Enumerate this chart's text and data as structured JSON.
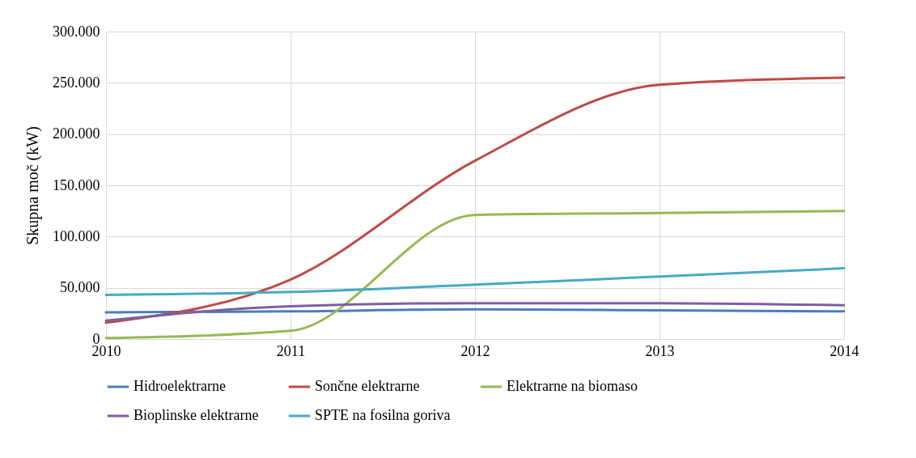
{
  "chart_data": {
    "type": "line",
    "ylabel": "Skupna moč (kW)",
    "x": [
      2010,
      2011,
      2012,
      2013,
      2014
    ],
    "xlim": [
      2010,
      2014
    ],
    "xticks": [
      2010,
      2011,
      2012,
      2013,
      2014
    ],
    "ylim": [
      0,
      300000
    ],
    "yticks": [
      0,
      {
        "value": 50000,
        "label": "50.000"
      },
      {
        "value": 100000,
        "label": "100.000"
      },
      {
        "value": 150000,
        "label": "150.000"
      },
      {
        "value": 200000,
        "label": "200.000"
      },
      {
        "value": 250000,
        "label": "250.000"
      },
      {
        "value": 300000,
        "label": "300.000"
      }
    ],
    "grid": true,
    "legend": "bottom",
    "marker": "none",
    "line_style": "solid",
    "series": [
      {
        "name": "Hidroelektrarne",
        "color": "#4a7ebb",
        "values": [
          26000,
          27000,
          29000,
          28000,
          27000
        ]
      },
      {
        "name": "Sončne elektrarne",
        "color": "#be4b48",
        "values": [
          16000,
          58000,
          174000,
          248000,
          255000
        ]
      },
      {
        "name": "Elektrarne na biomaso",
        "color": "#98b954",
        "values": [
          1000,
          8000,
          121000,
          123000,
          125000
        ]
      },
      {
        "name": "Bioplinske elektrarne",
        "color": "#7d60a0",
        "values": [
          18000,
          32000,
          35000,
          35000,
          33000
        ]
      },
      {
        "name": "SPTE na fosilna goriva",
        "color": "#46aac5",
        "values": [
          43000,
          46000,
          53000,
          61000,
          69000
        ]
      }
    ]
  }
}
